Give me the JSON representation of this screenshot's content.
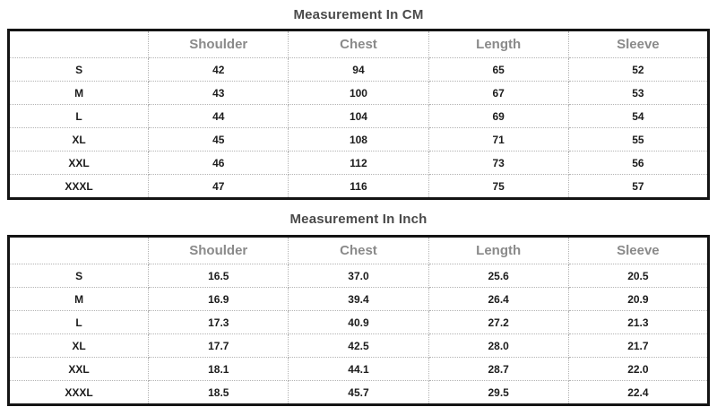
{
  "colors": {
    "background": "#ffffff",
    "title_text": "#4a4a4a",
    "header_text": "#8a8a8a",
    "data_text": "#1c1c1c",
    "table_border": "#141414",
    "grid_lines": "#b3b3b3"
  },
  "tables": [
    {
      "title": "Measurement In CM",
      "columns": [
        "Shoulder",
        "Chest",
        "Length",
        "Sleeve"
      ],
      "rows": [
        {
          "size": "S",
          "values": [
            "42",
            "94",
            "65",
            "52"
          ]
        },
        {
          "size": "M",
          "values": [
            "43",
            "100",
            "67",
            "53"
          ]
        },
        {
          "size": "L",
          "values": [
            "44",
            "104",
            "69",
            "54"
          ]
        },
        {
          "size": "XL",
          "values": [
            "45",
            "108",
            "71",
            "55"
          ]
        },
        {
          "size": "XXL",
          "values": [
            "46",
            "112",
            "73",
            "56"
          ]
        },
        {
          "size": "XXXL",
          "values": [
            "47",
            "116",
            "75",
            "57"
          ]
        }
      ]
    },
    {
      "title": "Measurement In Inch",
      "columns": [
        "Shoulder",
        "Chest",
        "Length",
        "Sleeve"
      ],
      "rows": [
        {
          "size": "S",
          "values": [
            "16.5",
            "37.0",
            "25.6",
            "20.5"
          ]
        },
        {
          "size": "M",
          "values": [
            "16.9",
            "39.4",
            "26.4",
            "20.9"
          ]
        },
        {
          "size": "L",
          "values": [
            "17.3",
            "40.9",
            "27.2",
            "21.3"
          ]
        },
        {
          "size": "XL",
          "values": [
            "17.7",
            "42.5",
            "28.0",
            "21.7"
          ]
        },
        {
          "size": "XXL",
          "values": [
            "18.1",
            "44.1",
            "28.7",
            "22.0"
          ]
        },
        {
          "size": "XXXL",
          "values": [
            "18.5",
            "45.7",
            "29.5",
            "22.4"
          ]
        }
      ]
    }
  ]
}
